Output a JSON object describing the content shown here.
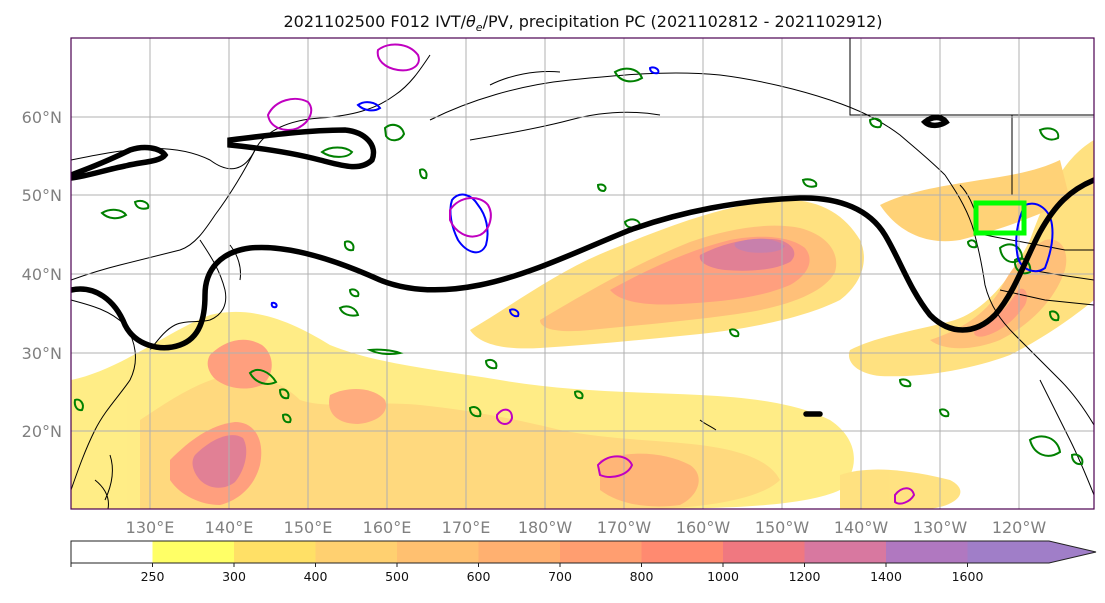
{
  "title": "2021102500 F012 IVT/θe/PV, precipitation PC (2021102812 - 2021102912)",
  "title_parts": {
    "pre": "2021102500 F012 IVT/",
    "theta": "θ",
    "sub": "e",
    "post": "/PV, precipitation PC (2021102812 - 2021102912)"
  },
  "map": {
    "lat_labels": [
      "60°N",
      "50°N",
      "40°N",
      "30°N",
      "20°N"
    ],
    "lon_labels": [
      "130°E",
      "140°E",
      "150°E",
      "160°E",
      "170°E",
      "180°W",
      "170°W",
      "160°W",
      "150°W",
      "140°W",
      "130°W",
      "120°W"
    ],
    "colors": {
      "land_outline": "#000000",
      "gridline": "#b0b0b0",
      "theta_e_contour": "#000000",
      "pv_contour_blue": "#0000ff",
      "pv_contour_magenta": "#c000c0",
      "precip_contour": "#008000",
      "highlight_box": "#00ff00"
    }
  },
  "colorbar": {
    "ticks": [
      "250",
      "300",
      "400",
      "500",
      "600",
      "700",
      "800",
      "1000",
      "1200",
      "1400",
      "1600"
    ],
    "levels": [
      250,
      300,
      400,
      500,
      600,
      700,
      800,
      1000,
      1200,
      1400,
      1600
    ],
    "colors": [
      "#ffffff",
      "#ffff66",
      "#ffe066",
      "#ffd070",
      "#ffc070",
      "#ffb070",
      "#ff9e70",
      "#ff8a70",
      "#f07880",
      "#d878a0",
      "#b078c0",
      "#a07ec8"
    ],
    "extend": "max"
  }
}
